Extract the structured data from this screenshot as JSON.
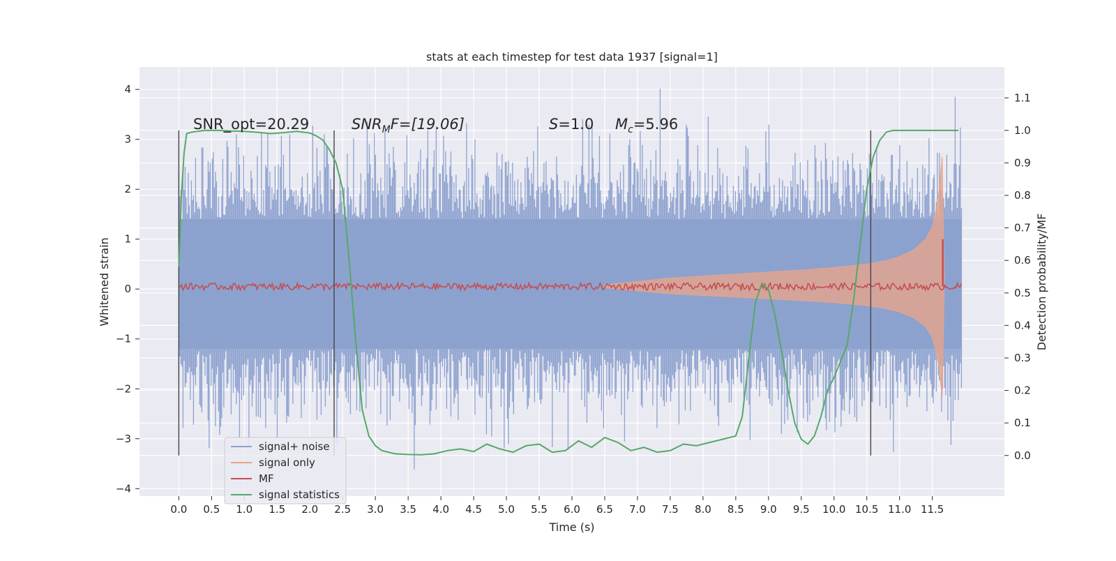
{
  "chart_data": {
    "type": "line",
    "title": "stats at each timestep for test data 1937 [signal=1]",
    "xlabel": "Time (s)",
    "ylabel": "Whitened strain",
    "y2label": "Detection probability/MF",
    "xlim": [
      -0.6,
      12.6
    ],
    "ylim": [
      -4.15,
      4.45
    ],
    "y2lim": [
      -0.125,
      1.195
    ],
    "x_ticks": [
      "0.0",
      "0.5",
      "1.0",
      "1.5",
      "2.0",
      "2.5",
      "3.0",
      "3.5",
      "4.0",
      "4.5",
      "5.0",
      "5.5",
      "6.0",
      "6.5",
      "7.0",
      "7.5",
      "8.0",
      "8.5",
      "9.0",
      "9.5",
      "10.0",
      "10.5",
      "11.0",
      "11.5"
    ],
    "y_ticks": [
      "4",
      "3",
      "2",
      "1",
      "0",
      "−1",
      "−2",
      "−3",
      "−4"
    ],
    "y2_ticks": [
      "1.1",
      "1.0",
      "0.9",
      "0.8",
      "0.7",
      "0.6",
      "0.5",
      "0.4",
      "0.3",
      "0.2",
      "0.1",
      "0.0"
    ],
    "annotations": {
      "snr_opt": "SNR_opt=20.29",
      "snr_mf_sym": "SNR",
      "snr_mf_sub": "M",
      "snr_mf_rest": "F=[19.06]",
      "s_sym": "S",
      "s_rest": "=1.0",
      "mc_sym": "M",
      "mc_sub": "c",
      "mc_rest": "=5.96"
    },
    "vertical_markers_s": [
      0.0,
      2.37,
      10.56
    ],
    "legend": {
      "placement": "lower-left",
      "entries": [
        {
          "label": "signal+ noise",
          "color": "#8da2cf"
        },
        {
          "label": "signal only",
          "color": "#e8a48a"
        },
        {
          "label": "MF",
          "color": "#c44e52"
        },
        {
          "label": "signal statistics",
          "color": "#55a868"
        }
      ]
    },
    "series": [
      {
        "name": "signal statistics",
        "axis": "right",
        "color": "#55a868",
        "x": [
          0.0,
          0.04,
          0.08,
          0.12,
          0.2,
          0.4,
          0.6,
          0.8,
          1.0,
          1.2,
          1.4,
          1.6,
          1.8,
          2.0,
          2.1,
          2.2,
          2.3,
          2.4,
          2.5,
          2.6,
          2.7,
          2.8,
          2.9,
          3.0,
          3.1,
          3.2,
          3.3,
          3.5,
          3.7,
          3.9,
          4.1,
          4.3,
          4.5,
          4.7,
          4.9,
          5.1,
          5.3,
          5.5,
          5.7,
          5.9,
          6.1,
          6.3,
          6.5,
          6.7,
          6.9,
          7.1,
          7.3,
          7.5,
          7.7,
          7.9,
          8.1,
          8.3,
          8.5,
          8.6,
          8.7,
          8.8,
          8.9,
          9.0,
          9.1,
          9.2,
          9.3,
          9.4,
          9.5,
          9.6,
          9.7,
          9.8,
          9.9,
          10.0,
          10.1,
          10.2,
          10.3,
          10.4,
          10.5,
          10.6,
          10.7,
          10.8,
          10.9,
          11.0,
          11.2,
          11.5,
          11.8,
          11.9
        ],
        "y": [
          0.58,
          0.8,
          0.93,
          0.99,
          0.995,
          1.0,
          1.0,
          0.998,
          0.997,
          0.994,
          0.99,
          0.993,
          0.997,
          0.992,
          0.983,
          0.97,
          0.94,
          0.9,
          0.82,
          0.6,
          0.35,
          0.14,
          0.06,
          0.03,
          0.015,
          0.01,
          0.005,
          0.003,
          0.002,
          0.005,
          0.015,
          0.02,
          0.012,
          0.035,
          0.02,
          0.01,
          0.03,
          0.035,
          0.01,
          0.015,
          0.045,
          0.025,
          0.055,
          0.04,
          0.015,
          0.025,
          0.01,
          0.015,
          0.035,
          0.03,
          0.04,
          0.05,
          0.06,
          0.12,
          0.3,
          0.47,
          0.53,
          0.51,
          0.43,
          0.32,
          0.2,
          0.1,
          0.05,
          0.035,
          0.06,
          0.12,
          0.2,
          0.24,
          0.29,
          0.34,
          0.48,
          0.65,
          0.82,
          0.92,
          0.97,
          0.995,
          1.0,
          1.0,
          1.0,
          1.0,
          1.0,
          1.0
        ]
      },
      {
        "name": "MF",
        "axis": "left",
        "color": "#c44e52",
        "baseline": 0.05,
        "peak_x": 11.66,
        "peak_y": 1.0
      },
      {
        "name": "signal only",
        "axis": "left",
        "color": "#e8a48a",
        "envelope_x": [
          6.5,
          7.0,
          7.5,
          8.0,
          8.5,
          9.0,
          9.5,
          10.0,
          10.5,
          10.8,
          11.0,
          11.2,
          11.4,
          11.5,
          11.55,
          11.6,
          11.65,
          11.68
        ],
        "envelope_amp": [
          0.03,
          0.1,
          0.17,
          0.21,
          0.25,
          0.29,
          0.33,
          0.38,
          0.45,
          0.52,
          0.6,
          0.72,
          0.95,
          1.2,
          1.5,
          1.9,
          2.6,
          0.2
        ]
      },
      {
        "name": "signal+ noise",
        "axis": "left",
        "color": "#8da2cf",
        "x_range": [
          0.0,
          11.95
        ],
        "typical_range": [
          -1.2,
          1.4
        ],
        "extreme_range": [
          -3.7,
          4.1
        ]
      }
    ]
  }
}
